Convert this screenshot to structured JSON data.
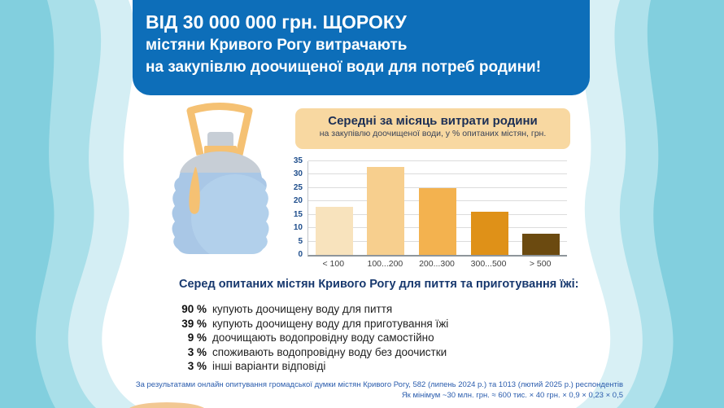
{
  "header": {
    "line1": "ВІД 30 000 000 грн. ЩОРОКУ",
    "line2": "містяни Кривого Рогу витрачають",
    "line3": "на закупівлю доочищеної води для потреб родини!"
  },
  "chart_data": {
    "type": "bar",
    "title": "Середні за місяць витрати родини",
    "subtitle": "на закупівлю доочищеної води, у % опитаних містян, грн.",
    "categories": [
      "< 100",
      "100...200",
      "200...300",
      "300...500",
      "> 500"
    ],
    "values": [
      18,
      33,
      25,
      16,
      8
    ],
    "bar_colors": [
      "#f8e3bd",
      "#f7cf8e",
      "#f3b24f",
      "#df9118",
      "#6b4a10"
    ],
    "xlabel": "",
    "ylabel": "",
    "ylim": [
      0,
      35
    ],
    "ytick_step": 5,
    "grid": true,
    "legend": false
  },
  "survey": {
    "heading": "Серед опитаних містян Кривого Рогу для пиття та приготування їжі:",
    "items": [
      {
        "value": "90 %",
        "label": "купують доочищену воду для пиття"
      },
      {
        "value": "39 %",
        "label": "купують доочищену воду для приготування їжі"
      },
      {
        "value": "9 %",
        "label": "доочищають водопровідну воду самостійно"
      },
      {
        "value": "3 %",
        "label": "споживають водопровідну воду без доочистки"
      },
      {
        "value": "3 %",
        "label": "інші варіанти відповіді"
      }
    ]
  },
  "footer": {
    "line1": "За результатами онлайн опитування громадської думки містян Кривого Рогу, 582 (липень 2024 р.) та 1013 (лютий 2025 р.) респондентів",
    "line2": "Як мінімум ~30 млн. грн. ≈ 600 тис. × 40 грн. × 0,9 × 0,23 × 0,5"
  },
  "illustration": {
    "name": "water-bottle"
  },
  "colors": {
    "header_bg": "#0d6eb9",
    "panel_bg": "#f8d8a1",
    "accent_navy": "#17386e",
    "wave_teal": "#82cfde"
  }
}
